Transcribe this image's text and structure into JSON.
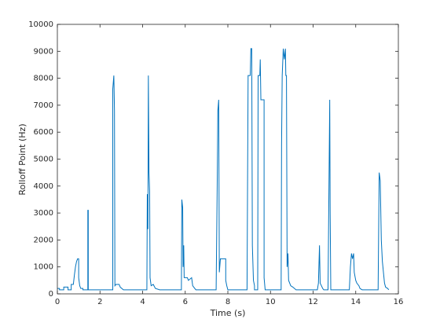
{
  "chart_data": {
    "type": "line",
    "xlabel": "Time (s)",
    "ylabel": "Rolloff Point (Hz)",
    "xlim": [
      0,
      16
    ],
    "xticks": [
      0,
      2,
      4,
      6,
      8,
      10,
      12,
      14,
      16
    ],
    "ylim": [
      0,
      10000
    ],
    "yticks": [
      0,
      1000,
      2000,
      3000,
      4000,
      5000,
      6000,
      7000,
      8000,
      9000,
      10000
    ],
    "grid": false,
    "color": "#0072bd",
    "x": [
      0,
      0.1,
      0.1,
      0.3,
      0.3,
      0.5,
      0.5,
      0.65,
      0.65,
      0.75,
      0.8,
      0.85,
      0.9,
      0.95,
      1.0,
      1.0,
      1.05,
      1.1,
      1.2,
      1.2,
      1.43,
      1.43,
      1.45,
      1.45,
      2.6,
      2.6,
      2.65,
      2.68,
      2.7,
      2.75,
      2.9,
      2.95,
      3.1,
      4.2,
      4.22,
      4.25,
      4.27,
      4.3,
      4.33,
      4.35,
      4.4,
      4.5,
      4.6,
      4.8,
      5.82,
      5.84,
      5.88,
      5.9,
      5.93,
      5.95,
      6.1,
      6.15,
      6.3,
      6.35,
      6.45,
      6.5,
      7.45,
      7.5,
      7.53,
      7.57,
      7.6,
      7.65,
      7.9,
      7.9,
      7.95,
      8.0,
      8.9,
      8.95,
      9.05,
      9.08,
      9.12,
      9.15,
      9.2,
      9.25,
      9.25,
      9.4,
      9.42,
      9.5,
      9.52,
      9.55,
      9.7,
      9.7,
      9.75,
      10.5,
      10.52,
      10.55,
      10.6,
      10.65,
      10.7,
      10.72,
      10.75,
      10.78,
      10.82,
      10.85,
      10.95,
      11.05,
      11.2,
      12.2,
      12.25,
      12.3,
      12.33,
      12.45,
      12.5,
      12.7,
      12.75,
      12.78,
      12.8,
      12.83,
      13.7,
      13.75,
      13.8,
      13.85,
      13.9,
      13.93,
      14.0,
      14.05,
      14.15,
      14.2,
      14.3,
      15.05,
      15.1,
      15.15,
      15.2,
      15.25,
      15.3,
      15.35,
      15.4,
      15.5,
      15.55
    ],
    "values": [
      200,
      200,
      150,
      150,
      250,
      250,
      150,
      150,
      350,
      350,
      700,
      1000,
      1200,
      1300,
      1300,
      600,
      300,
      200,
      200,
      150,
      150,
      3100,
      3100,
      150,
      150,
      7600,
      8100,
      6800,
      300,
      350,
      350,
      250,
      150,
      150,
      3700,
      2400,
      8100,
      4500,
      3800,
      600,
      300,
      350,
      200,
      150,
      150,
      3500,
      3200,
      1000,
      1800,
      600,
      600,
      500,
      600,
      300,
      200,
      150,
      150,
      4000,
      6800,
      7200,
      800,
      1300,
      1300,
      500,
      300,
      150,
      150,
      8100,
      8100,
      9100,
      9100,
      1800,
      500,
      300,
      150,
      150,
      8100,
      8100,
      8700,
      7200,
      7200,
      600,
      150,
      150,
      5500,
      8100,
      9100,
      8700,
      9100,
      8100,
      8100,
      1000,
      1500,
      500,
      300,
      250,
      150,
      150,
      400,
      1800,
      400,
      200,
      150,
      150,
      4500,
      7200,
      3000,
      150,
      150,
      1000,
      1500,
      1300,
      1500,
      800,
      500,
      400,
      300,
      200,
      150,
      150,
      4500,
      4200,
      2000,
      1200,
      800,
      400,
      250,
      200,
      150
    ]
  }
}
